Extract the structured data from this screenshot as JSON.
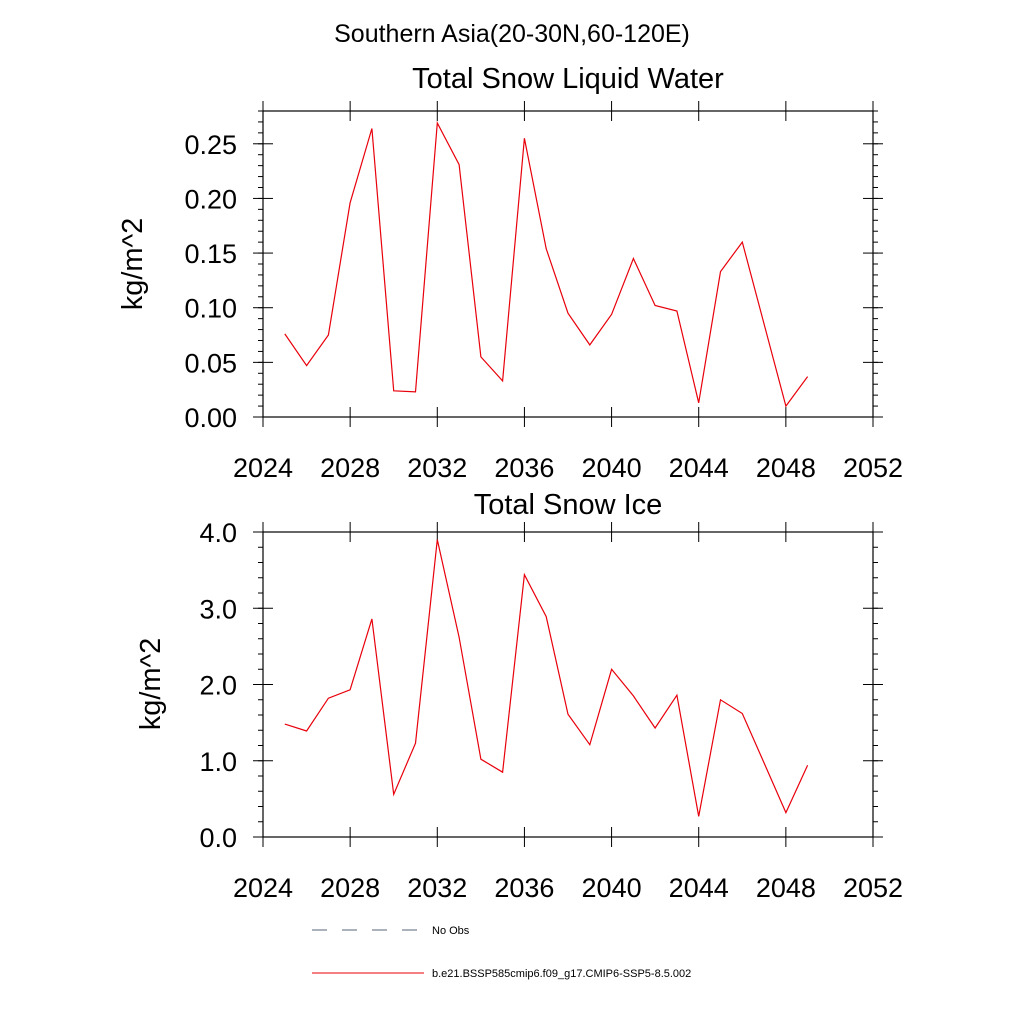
{
  "region_title": "Southern Asia(20-30N,60-120E)",
  "legend": [
    {
      "label": "No Obs",
      "style": "dashed",
      "color": "#5a6478"
    },
    {
      "label": "b.e21.BSSP585cmip6.f09_g17.CMIP6-SSP5-8.5.002",
      "style": "solid",
      "color": "#e8000b"
    }
  ],
  "chart_data": [
    {
      "type": "line",
      "title": "Total Snow Liquid Water",
      "xlabel": "",
      "ylabel": "kg/m^2",
      "xlim": [
        2024,
        2052
      ],
      "ylim": [
        0,
        0.28
      ],
      "xticks": [
        2024,
        2028,
        2032,
        2036,
        2040,
        2044,
        2048,
        2052
      ],
      "xtick_labels": [
        "2024",
        "2028",
        "2032",
        "2036",
        "2040",
        "2044",
        "2048",
        "2052"
      ],
      "yticks": [
        0,
        0.05,
        0.1,
        0.15,
        0.2,
        0.25
      ],
      "ytick_labels": [
        "0.00",
        "0.05",
        "0.10",
        "0.15",
        "0.20",
        "0.25"
      ],
      "grid": false,
      "series": [
        {
          "name": "b.e21.BSSP585cmip6.f09_g17.CMIP6-SSP5-8.5.002",
          "color": "#e8000b",
          "x": [
            2025,
            2026,
            2027,
            2028,
            2029,
            2030,
            2031,
            2032,
            2033,
            2034,
            2035,
            2036,
            2037,
            2038,
            2039,
            2040,
            2041,
            2042,
            2043,
            2044,
            2045,
            2046,
            2047,
            2048,
            2049
          ],
          "y": [
            0.076,
            0.047,
            0.075,
            0.196,
            0.264,
            0.024,
            0.023,
            0.269,
            0.231,
            0.055,
            0.033,
            0.255,
            0.154,
            0.095,
            0.066,
            0.094,
            0.145,
            0.102,
            0.097,
            0.013,
            0.133,
            0.16,
            0.085,
            0.01,
            0.037
          ]
        }
      ]
    },
    {
      "type": "line",
      "title": "Total Snow Ice",
      "xlabel": "",
      "ylabel": "kg/m^2",
      "xlim": [
        2024,
        2052
      ],
      "ylim": [
        0,
        4.0
      ],
      "xticks": [
        2024,
        2028,
        2032,
        2036,
        2040,
        2044,
        2048,
        2052
      ],
      "xtick_labels": [
        "2024",
        "2028",
        "2032",
        "2036",
        "2040",
        "2044",
        "2048",
        "2052"
      ],
      "yticks": [
        0,
        1,
        2,
        3,
        4
      ],
      "ytick_labels": [
        "0.0",
        "1.0",
        "2.0",
        "3.0",
        "4.0"
      ],
      "grid": false,
      "series": [
        {
          "name": "b.e21.BSSP585cmip6.f09_g17.CMIP6-SSP5-8.5.002",
          "color": "#e8000b",
          "x": [
            2025,
            2026,
            2027,
            2028,
            2029,
            2030,
            2031,
            2032,
            2033,
            2034,
            2035,
            2036,
            2037,
            2038,
            2039,
            2040,
            2041,
            2042,
            2043,
            2044,
            2045,
            2046,
            2047,
            2048,
            2049
          ],
          "y": [
            1.48,
            1.39,
            1.82,
            1.93,
            2.86,
            0.56,
            1.23,
            3.9,
            2.62,
            1.02,
            0.85,
            3.44,
            2.89,
            1.61,
            1.21,
            2.2,
            1.85,
            1.43,
            1.86,
            0.27,
            1.8,
            1.62,
            0.97,
            0.32,
            0.94
          ]
        }
      ]
    }
  ]
}
